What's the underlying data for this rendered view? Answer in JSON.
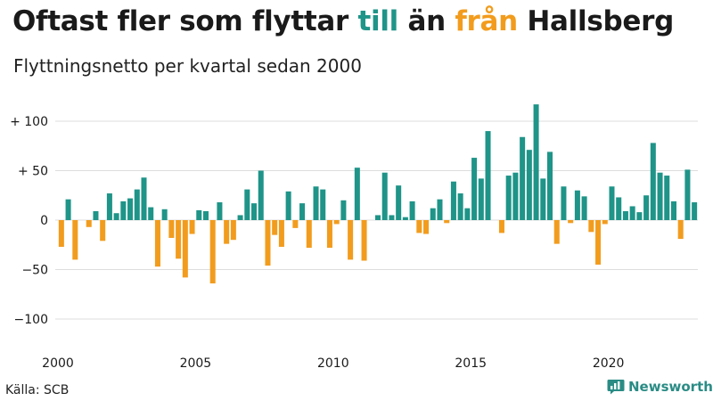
{
  "header": {
    "title_parts": [
      "Oftast fler som flyttar ",
      "till",
      " än ",
      "från",
      " Hallsberg"
    ],
    "subtitle": "Flyttningsnetto per kvartal sedan 2000"
  },
  "footer": {
    "source": "Källa: SCB",
    "brand": "Newsworthy"
  },
  "colors": {
    "positive": "#1f9488",
    "negative": "#f29c1d",
    "grid": "#dddddd",
    "text": "#1a1a1a",
    "brand": "#2a8c85"
  },
  "chart_data": {
    "type": "bar",
    "title": "Oftast fler som flyttar till än från Hallsberg",
    "subtitle": "Flyttningsnetto per kvartal sedan 2000",
    "xlabel": "",
    "ylabel": "",
    "ylim": [
      -115,
      120
    ],
    "x_start": "2000 Q1",
    "xticks": [
      "2000",
      "2005",
      "2010",
      "2015",
      "2020"
    ],
    "yticks": [
      {
        "value": 100,
        "label": "+ 100"
      },
      {
        "value": 50,
        "label": "+  50"
      },
      {
        "value": 0,
        "label": "0"
      },
      {
        "value": -50,
        "label": "−50"
      },
      {
        "value": -100,
        "label": "−100"
      }
    ],
    "grid": "horizontal",
    "values": [
      -27,
      21,
      -40,
      0,
      -7,
      9,
      -21,
      27,
      7,
      19,
      22,
      31,
      43,
      13,
      -47,
      11,
      -18,
      -39,
      -58,
      -14,
      10,
      9,
      -64,
      18,
      -24,
      -20,
      5,
      31,
      17,
      50,
      -46,
      -15,
      -27,
      29,
      -8,
      17,
      -28,
      34,
      31,
      -28,
      -4,
      20,
      -40,
      53,
      -41,
      0,
      5,
      48,
      5,
      35,
      3,
      19,
      -13,
      -14,
      12,
      21,
      -3,
      39,
      27,
      12,
      63,
      42,
      90,
      0,
      -13,
      45,
      48,
      84,
      71,
      117,
      42,
      69,
      -24,
      34,
      -3,
      30,
      24,
      -12,
      -45,
      -4,
      34,
      23,
      9,
      14,
      8,
      25,
      78,
      48,
      45,
      19,
      -19,
      51,
      18
    ]
  }
}
